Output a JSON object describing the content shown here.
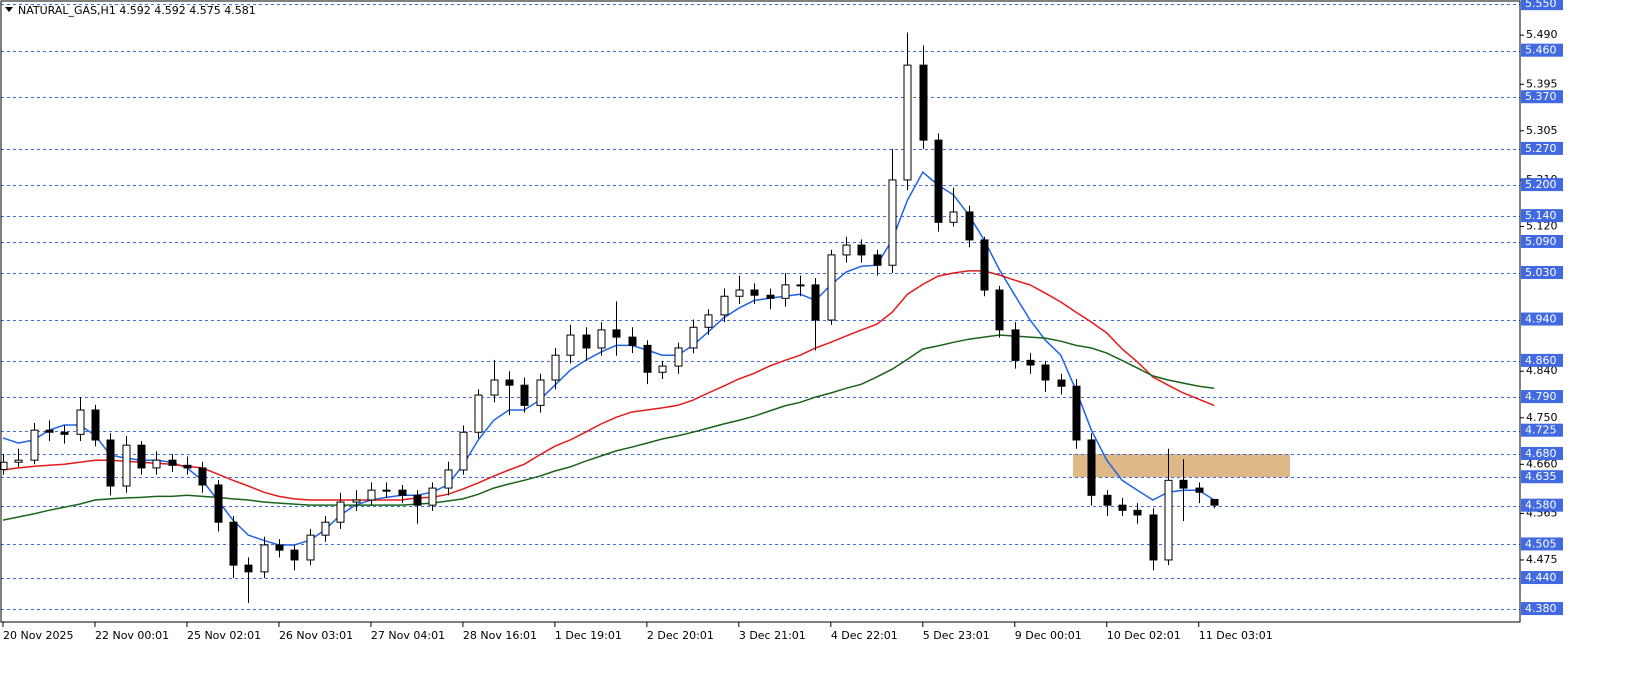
{
  "chart_data": {
    "type": "candlestick",
    "title": "NATURAL_GAS,H1  4.592 4.592 4.575 4.581",
    "categories": [
      "20 Nov 2025",
      null,
      null,
      null,
      null,
      null,
      "22 Nov 00:01",
      null,
      null,
      null,
      null,
      null,
      "25 Nov 02:01",
      null,
      null,
      null,
      null,
      null,
      "26 Nov 03:01",
      null,
      null,
      null,
      null,
      null,
      "27 Nov 04:01",
      null,
      null,
      null,
      null,
      null,
      "28 Nov 16:01",
      null,
      null,
      null,
      null,
      null,
      "1 Dec 19:01",
      null,
      null,
      null,
      null,
      null,
      "2 Dec 20:01",
      null,
      null,
      null,
      null,
      null,
      "3 Dec 21:01",
      null,
      null,
      null,
      null,
      null,
      "4 Dec 22:01",
      null,
      null,
      null,
      null,
      null,
      "5 Dec 23:01",
      null,
      null,
      null,
      null,
      null,
      "9 Dec 00:01",
      null,
      null,
      null,
      null,
      null,
      "10 Dec 02:01",
      null,
      null,
      null,
      null,
      null,
      "11 Dec 03:01",
      null
    ],
    "open": [
      4.65,
      4.664,
      4.668,
      4.726,
      4.722,
      4.718,
      4.765,
      4.707,
      4.618,
      4.697,
      4.653,
      4.668,
      4.658,
      4.653,
      4.62,
      4.548,
      4.465,
      4.452,
      4.504,
      4.494,
      4.475,
      4.523,
      4.548,
      4.587,
      4.591,
      4.61,
      4.61,
      4.6,
      4.581,
      4.614,
      4.649,
      4.722,
      4.794,
      4.823,
      4.813,
      4.774,
      4.823,
      4.871,
      4.91,
      4.885,
      4.92,
      4.906,
      4.89,
      4.838,
      4.85,
      4.885,
      4.925,
      4.949,
      4.985,
      4.997,
      4.987,
      4.981,
      5.007,
      5.007,
      4.939,
      5.065,
      5.084,
      5.065,
      5.045,
      5.21,
      5.432,
      5.287,
      5.128,
      5.148,
      5.094,
      4.997,
      4.92,
      4.861,
      4.852,
      4.823,
      4.811,
      4.707,
      4.6,
      4.581,
      4.571,
      4.562,
      4.475,
      4.629,
      4.614,
      4.592
    ],
    "high": [
      4.68,
      4.69,
      4.74,
      4.745,
      4.735,
      4.79,
      4.775,
      4.72,
      4.715,
      4.705,
      4.685,
      4.68,
      4.675,
      4.665,
      4.63,
      4.56,
      4.48,
      4.52,
      4.515,
      4.505,
      4.535,
      4.56,
      4.605,
      4.61,
      4.625,
      4.625,
      4.62,
      4.61,
      4.625,
      4.665,
      4.735,
      4.805,
      4.862,
      4.84,
      4.828,
      4.835,
      4.885,
      4.93,
      4.925,
      4.935,
      4.975,
      4.925,
      4.9,
      4.86,
      4.895,
      4.94,
      4.96,
      5.0,
      5.025,
      5.01,
      5.0,
      5.03,
      5.025,
      5.02,
      5.075,
      5.1,
      5.095,
      5.075,
      5.27,
      5.495,
      5.47,
      5.3,
      5.195,
      5.16,
      5.1,
      5.005,
      4.935,
      4.875,
      4.86,
      4.835,
      4.825,
      4.72,
      4.61,
      4.595,
      4.585,
      4.575,
      4.69,
      4.67,
      4.625,
      4.592
    ],
    "low": [
      4.64,
      4.655,
      4.66,
      4.705,
      4.7,
      4.705,
      4.695,
      4.6,
      4.605,
      4.64,
      4.64,
      4.645,
      4.64,
      4.605,
      4.53,
      4.44,
      4.392,
      4.44,
      4.48,
      4.455,
      4.465,
      4.51,
      4.535,
      4.57,
      4.58,
      4.595,
      4.585,
      4.545,
      4.57,
      4.6,
      4.64,
      4.71,
      4.78,
      4.755,
      4.76,
      4.76,
      4.805,
      4.855,
      4.86,
      4.87,
      4.87,
      4.875,
      4.815,
      4.825,
      4.835,
      4.875,
      4.91,
      4.935,
      4.97,
      4.97,
      4.96,
      4.965,
      4.985,
      4.88,
      4.93,
      5.05,
      5.05,
      5.025,
      5.03,
      5.19,
      5.27,
      5.11,
      5.12,
      5.08,
      4.985,
      4.905,
      4.845,
      4.835,
      4.8,
      4.795,
      4.69,
      4.58,
      4.56,
      4.56,
      4.545,
      4.455,
      4.465,
      4.55,
      4.585,
      4.575
    ],
    "close": [
      4.664,
      4.668,
      4.726,
      4.722,
      4.718,
      4.765,
      4.707,
      4.618,
      4.697,
      4.653,
      4.668,
      4.658,
      4.653,
      4.62,
      4.548,
      4.465,
      4.452,
      4.504,
      4.494,
      4.475,
      4.523,
      4.548,
      4.587,
      4.591,
      4.61,
      4.61,
      4.6,
      4.581,
      4.614,
      4.649,
      4.722,
      4.794,
      4.823,
      4.813,
      4.774,
      4.823,
      4.871,
      4.91,
      4.885,
      4.92,
      4.906,
      4.89,
      4.838,
      4.85,
      4.885,
      4.925,
      4.949,
      4.985,
      4.997,
      4.987,
      4.981,
      5.007,
      5.007,
      4.939,
      5.065,
      5.084,
      5.065,
      5.045,
      5.21,
      5.432,
      5.287,
      5.128,
      5.148,
      5.094,
      4.997,
      4.92,
      4.861,
      4.852,
      4.823,
      4.811,
      4.707,
      4.6,
      4.581,
      4.571,
      4.562,
      4.475,
      4.629,
      4.614,
      4.606,
      4.581
    ],
    "up_color": "#ffffff",
    "down_color": "#000000",
    "wick_color": "#000000",
    "overlays": [
      {
        "color": "#1e64e6",
        "values": [
          4.711,
          4.701,
          4.707,
          4.726,
          4.736,
          4.736,
          4.716,
          4.678,
          4.672,
          4.668,
          4.668,
          4.664,
          4.653,
          4.629,
          4.591,
          4.552,
          4.523,
          4.513,
          4.504,
          4.504,
          4.513,
          4.533,
          4.562,
          4.581,
          4.591,
          4.596,
          4.6,
          4.6,
          4.606,
          4.62,
          4.658,
          4.707,
          4.745,
          4.765,
          4.765,
          4.784,
          4.813,
          4.842,
          4.861,
          4.877,
          4.89,
          4.89,
          4.881,
          4.871,
          4.871,
          4.89,
          4.916,
          4.943,
          4.962,
          4.977,
          4.981,
          4.985,
          4.989,
          4.977,
          5.007,
          5.032,
          5.043,
          5.045,
          5.094,
          5.171,
          5.225,
          5.2,
          5.181,
          5.142,
          5.094,
          5.036,
          4.987,
          4.939,
          4.9,
          4.871,
          4.803,
          4.726,
          4.668,
          4.629,
          4.61,
          4.591,
          4.606,
          4.61,
          4.61,
          4.591
        ]
      },
      {
        "color": "#e61919",
        "values": [
          4.649,
          4.653,
          4.656,
          4.658,
          4.66,
          4.664,
          4.668,
          4.668,
          4.666,
          4.664,
          4.662,
          4.66,
          4.656,
          4.653,
          4.641,
          4.629,
          4.618,
          4.606,
          4.598,
          4.593,
          4.591,
          4.591,
          4.591,
          4.591,
          4.591,
          4.591,
          4.591,
          4.595,
          4.596,
          4.602,
          4.612,
          4.624,
          4.637,
          4.649,
          4.66,
          4.678,
          4.695,
          4.707,
          4.722,
          4.738,
          4.751,
          4.761,
          4.765,
          4.769,
          4.774,
          4.784,
          4.798,
          4.811,
          4.825,
          4.836,
          4.85,
          4.861,
          4.871,
          4.885,
          4.896,
          4.908,
          4.92,
          4.931,
          4.954,
          4.989,
          5.008,
          5.024,
          5.03,
          5.034,
          5.034,
          5.026,
          5.016,
          5.007,
          4.991,
          4.974,
          4.954,
          4.935,
          4.914,
          4.883,
          4.858,
          4.829,
          4.813,
          4.798,
          4.786,
          4.774
        ]
      },
      {
        "color": "#196419",
        "values": [
          4.552,
          4.558,
          4.564,
          4.571,
          4.577,
          4.583,
          4.591,
          4.593,
          4.595,
          4.596,
          4.598,
          4.598,
          4.6,
          4.598,
          4.596,
          4.593,
          4.591,
          4.587,
          4.585,
          4.583,
          4.581,
          4.581,
          4.581,
          4.581,
          4.581,
          4.581,
          4.581,
          4.583,
          4.585,
          4.589,
          4.593,
          4.602,
          4.614,
          4.622,
          4.629,
          4.637,
          4.647,
          4.655,
          4.666,
          4.676,
          4.686,
          4.693,
          4.701,
          4.709,
          4.715,
          4.722,
          4.73,
          4.738,
          4.745,
          4.753,
          4.763,
          4.773,
          4.78,
          4.79,
          4.798,
          4.807,
          4.815,
          4.829,
          4.844,
          4.863,
          4.883,
          4.889,
          4.896,
          4.902,
          4.906,
          4.91,
          4.908,
          4.906,
          4.904,
          4.898,
          4.89,
          4.885,
          4.875,
          4.861,
          4.846,
          4.831,
          4.823,
          4.817,
          4.811,
          4.807
        ]
      }
    ],
    "ylim": [
      4.355,
      5.558
    ],
    "yticks": [
      {
        "value": 5.49,
        "label": "5.490"
      },
      5.395,
      5.305,
      {
        "value": 5.21,
        "label": "5.210"
      },
      {
        "value": 5.12,
        "label": "5.120"
      },
      {
        "value": 4.84,
        "label": "4.840"
      },
      {
        "value": 4.75,
        "label": "4.750"
      },
      {
        "value": 4.66,
        "label": "4.660"
      },
      4.565,
      4.475
    ],
    "levels": [
      {
        "value": 5.55,
        "label": "5.550"
      },
      {
        "value": 5.46,
        "label": "5.460"
      },
      {
        "value": 5.37,
        "label": "5.370"
      },
      {
        "value": 5.27,
        "label": "5.270"
      },
      {
        "value": 5.2,
        "label": "5.200"
      },
      {
        "value": 5.14,
        "label": "5.140"
      },
      {
        "value": 5.09,
        "label": "5.090"
      },
      {
        "value": 5.03,
        "label": "5.030"
      },
      {
        "value": 4.94,
        "label": "4.940"
      },
      {
        "value": 4.86,
        "label": "4.860"
      },
      {
        "value": 4.79,
        "label": "4.790"
      },
      4.725,
      {
        "value": 4.68,
        "label": "4.680"
      },
      4.635,
      {
        "value": 4.58,
        "label": "4.580"
      },
      4.505,
      {
        "value": 4.44,
        "label": "4.440"
      },
      {
        "value": 4.38,
        "label": "4.380"
      }
    ],
    "level_color": "#4169e1",
    "zone": {
      "low": 4.635,
      "high": 4.68,
      "color": "#deb887"
    }
  }
}
